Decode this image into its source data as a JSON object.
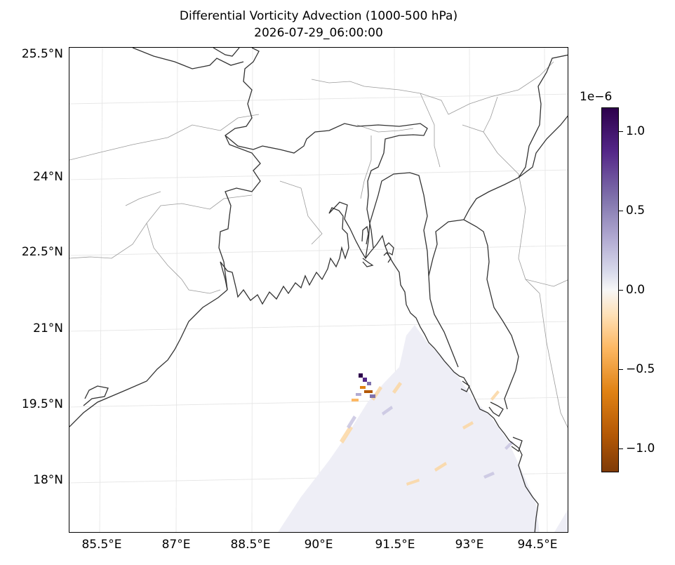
{
  "title": {
    "line1": "Differential Vorticity Advection (1000-500 hPa)",
    "line2": "2026-07-29_06:00:00"
  },
  "map": {
    "lat_labels": [
      "25.5°N",
      "24°N",
      "22.5°N",
      "21°N",
      "19.5°N",
      "18°N"
    ],
    "lon_labels": [
      "85.5°E",
      "87°E",
      "88.5°E",
      "90°E",
      "91.5°E",
      "93°E",
      "94.5°E"
    ],
    "extent": {
      "lon": [
        84.9,
        94.9
      ],
      "lat": [
        17.0,
        26.1
      ]
    },
    "coast_color": "#333333",
    "border_color": "#9a9a9a",
    "grid_color": "#e4e4e4"
  },
  "colorbar": {
    "exponent": "1e−6",
    "tick_labels": [
      "1.0",
      "0.5",
      "0.0",
      "−0.5",
      "−1.0"
    ],
    "tick_values": [
      1.0,
      0.5,
      0.0,
      -0.5,
      -1.0
    ],
    "range": [
      -1.15,
      1.15
    ],
    "colormap": "PuOr"
  }
}
